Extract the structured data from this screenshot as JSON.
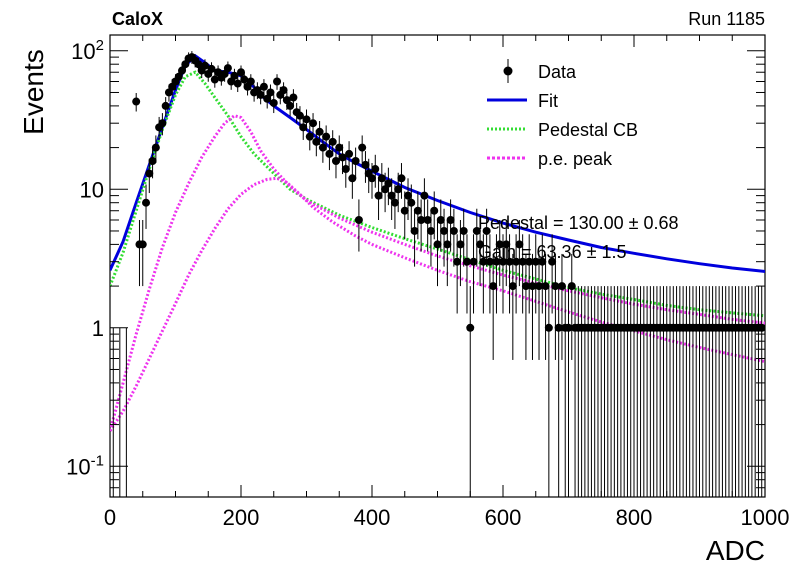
{
  "header": {
    "left_label": "CaloX",
    "right_label": "Run 1185"
  },
  "colors": {
    "data": "#000000",
    "fit": "#0000dd",
    "pedestal": "#33dd33",
    "pe_peak": "#ee33ee"
  },
  "chart_data": {
    "type": "scatter",
    "title": "",
    "xlabel": "ADC",
    "ylabel": "Events",
    "xlim": [
      0,
      1000
    ],
    "ylim": [
      0.06,
      130
    ],
    "yscale": "log",
    "x_ticks": [
      0,
      200,
      400,
      600,
      800,
      1000
    ],
    "x_tick_labels": [
      "0",
      "200",
      "400",
      "600",
      "800",
      "1000"
    ],
    "y_ticks": [
      0.1,
      1,
      10,
      100
    ],
    "y_tick_labels": [
      "10^-1",
      "1",
      "10",
      "10^2"
    ],
    "legend": {
      "placement": "top-right",
      "entries": [
        "Data",
        "Fit",
        "Pedestal CB",
        "p.e. peak"
      ]
    },
    "annotations": [
      "Pedestal = 130.00 ± 0.68",
      "Gain = 63.36 ± 1.5"
    ],
    "series": [
      {
        "name": "Data",
        "style": "points_with_error_bars",
        "points": [
          [
            5,
            0
          ],
          [
            15,
            0
          ],
          [
            25,
            0
          ],
          [
            40,
            43
          ],
          [
            45,
            4
          ],
          [
            50,
            4
          ],
          [
            55,
            8
          ],
          [
            60,
            13
          ],
          [
            65,
            16
          ],
          [
            70,
            20
          ],
          [
            75,
            28
          ],
          [
            80,
            30
          ],
          [
            85,
            40
          ],
          [
            90,
            50
          ],
          [
            95,
            55
          ],
          [
            100,
            60
          ],
          [
            105,
            65
          ],
          [
            110,
            72
          ],
          [
            115,
            80
          ],
          [
            120,
            88
          ],
          [
            125,
            90
          ],
          [
            130,
            85
          ],
          [
            135,
            80
          ],
          [
            140,
            72
          ],
          [
            145,
            78
          ],
          [
            150,
            68
          ],
          [
            155,
            74
          ],
          [
            160,
            62
          ],
          [
            165,
            70
          ],
          [
            170,
            64
          ],
          [
            175,
            68
          ],
          [
            180,
            75
          ],
          [
            185,
            60
          ],
          [
            190,
            66
          ],
          [
            195,
            58
          ],
          [
            200,
            70
          ],
          [
            205,
            62
          ],
          [
            210,
            55
          ],
          [
            215,
            60
          ],
          [
            220,
            50
          ],
          [
            225,
            52
          ],
          [
            230,
            48
          ],
          [
            235,
            55
          ],
          [
            240,
            45
          ],
          [
            245,
            50
          ],
          [
            250,
            42
          ],
          [
            255,
            60
          ],
          [
            260,
            48
          ],
          [
            265,
            52
          ],
          [
            270,
            44
          ],
          [
            275,
            40
          ],
          [
            280,
            46
          ],
          [
            285,
            36
          ],
          [
            290,
            34
          ],
          [
            295,
            28
          ],
          [
            300,
            32
          ],
          [
            305,
            24
          ],
          [
            310,
            30
          ],
          [
            315,
            22
          ],
          [
            320,
            26
          ],
          [
            325,
            20
          ],
          [
            330,
            24
          ],
          [
            335,
            18
          ],
          [
            340,
            22
          ],
          [
            345,
            16
          ],
          [
            350,
            20
          ],
          [
            355,
            17
          ],
          [
            360,
            14
          ],
          [
            365,
            18
          ],
          [
            370,
            12
          ],
          [
            375,
            16
          ],
          [
            380,
            6
          ],
          [
            385,
            20
          ],
          [
            390,
            15
          ],
          [
            395,
            13
          ],
          [
            400,
            12
          ],
          [
            405,
            14
          ],
          [
            410,
            9
          ],
          [
            415,
            12
          ],
          [
            420,
            10
          ],
          [
            425,
            11
          ],
          [
            430,
            9
          ],
          [
            435,
            8
          ],
          [
            440,
            10
          ],
          [
            445,
            12
          ],
          [
            450,
            7
          ],
          [
            455,
            9
          ],
          [
            460,
            8
          ],
          [
            465,
            5
          ],
          [
            470,
            7
          ],
          [
            475,
            6
          ],
          [
            480,
            9
          ],
          [
            485,
            6
          ],
          [
            490,
            5
          ],
          [
            495,
            7
          ],
          [
            500,
            4
          ],
          [
            505,
            6
          ],
          [
            510,
            5
          ],
          [
            515,
            4
          ],
          [
            520,
            6
          ],
          [
            525,
            5
          ],
          [
            530,
            3
          ],
          [
            535,
            4
          ],
          [
            540,
            5
          ],
          [
            545,
            3
          ],
          [
            550,
            1
          ],
          [
            555,
            3
          ],
          [
            560,
            5
          ],
          [
            565,
            4
          ],
          [
            570,
            3
          ],
          [
            575,
            5
          ],
          [
            580,
            3
          ],
          [
            585,
            2
          ],
          [
            590,
            3
          ],
          [
            595,
            4
          ],
          [
            600,
            3
          ],
          [
            605,
            4
          ],
          [
            610,
            3
          ],
          [
            615,
            2
          ],
          [
            620,
            3
          ],
          [
            625,
            4
          ],
          [
            630,
            3
          ],
          [
            635,
            2
          ],
          [
            640,
            3
          ],
          [
            645,
            2
          ],
          [
            650,
            3
          ],
          [
            655,
            2
          ],
          [
            660,
            3
          ],
          [
            665,
            2
          ],
          [
            670,
            1
          ],
          [
            675,
            3
          ],
          [
            680,
            2
          ],
          [
            685,
            1
          ],
          [
            690,
            2
          ],
          [
            695,
            1
          ],
          [
            700,
            1
          ],
          [
            705,
            2
          ],
          [
            710,
            1
          ],
          [
            715,
            1
          ],
          [
            720,
            1
          ],
          [
            725,
            1
          ],
          [
            730,
            1
          ],
          [
            735,
            1
          ],
          [
            740,
            1
          ],
          [
            745,
            1
          ],
          [
            750,
            1
          ],
          [
            755,
            1
          ],
          [
            760,
            1
          ],
          [
            765,
            1
          ],
          [
            770,
            1
          ],
          [
            775,
            1
          ],
          [
            780,
            1
          ],
          [
            785,
            1
          ],
          [
            790,
            1
          ],
          [
            795,
            1
          ],
          [
            800,
            1
          ],
          [
            805,
            1
          ],
          [
            810,
            1
          ],
          [
            815,
            1
          ],
          [
            820,
            1
          ],
          [
            825,
            1
          ],
          [
            830,
            1
          ],
          [
            835,
            1
          ],
          [
            840,
            1
          ],
          [
            845,
            1
          ],
          [
            850,
            1
          ],
          [
            855,
            1
          ],
          [
            860,
            1
          ],
          [
            865,
            1
          ],
          [
            870,
            1
          ],
          [
            875,
            1
          ],
          [
            880,
            1
          ],
          [
            885,
            1
          ],
          [
            890,
            1
          ],
          [
            895,
            1
          ],
          [
            900,
            1
          ],
          [
            905,
            1
          ],
          [
            910,
            1
          ],
          [
            915,
            1
          ],
          [
            920,
            1
          ],
          [
            925,
            1
          ],
          [
            930,
            1
          ],
          [
            935,
            1
          ],
          [
            940,
            1
          ],
          [
            945,
            1
          ],
          [
            950,
            1
          ],
          [
            955,
            1
          ],
          [
            960,
            1
          ],
          [
            965,
            1
          ],
          [
            970,
            1
          ],
          [
            975,
            1
          ],
          [
            980,
            1
          ],
          [
            985,
            1
          ],
          [
            990,
            1
          ],
          [
            995,
            1
          ]
        ]
      },
      {
        "name": "Fit",
        "style": "line",
        "points": [
          [
            0,
            2.6
          ],
          [
            20,
            4.2
          ],
          [
            40,
            8
          ],
          [
            60,
            15
          ],
          [
            80,
            28
          ],
          [
            100,
            52
          ],
          [
            115,
            78
          ],
          [
            130,
            92
          ],
          [
            145,
            82
          ],
          [
            160,
            72
          ],
          [
            180,
            70
          ],
          [
            200,
            66
          ],
          [
            215,
            58
          ],
          [
            230,
            48
          ],
          [
            250,
            40
          ],
          [
            275,
            33
          ],
          [
            300,
            27
          ],
          [
            325,
            22
          ],
          [
            350,
            18
          ],
          [
            375,
            15.5
          ],
          [
            400,
            13.5
          ],
          [
            450,
            10.3
          ],
          [
            500,
            8.3
          ],
          [
            550,
            6.8
          ],
          [
            600,
            5.7
          ],
          [
            650,
            4.9
          ],
          [
            700,
            4.3
          ],
          [
            750,
            3.8
          ],
          [
            800,
            3.45
          ],
          [
            850,
            3.15
          ],
          [
            900,
            2.9
          ],
          [
            950,
            2.7
          ],
          [
            1000,
            2.55
          ]
        ]
      },
      {
        "name": "Pedestal CB",
        "style": "dotted_line",
        "points": [
          [
            0,
            2
          ],
          [
            20,
            3.5
          ],
          [
            40,
            7
          ],
          [
            60,
            14
          ],
          [
            80,
            27
          ],
          [
            100,
            48
          ],
          [
            115,
            65
          ],
          [
            130,
            70
          ],
          [
            145,
            58
          ],
          [
            160,
            46
          ],
          [
            180,
            34
          ],
          [
            200,
            24
          ],
          [
            220,
            18
          ],
          [
            250,
            13
          ],
          [
            275,
            10
          ],
          [
            300,
            8.5
          ],
          [
            350,
            6.5
          ],
          [
            400,
            5.3
          ],
          [
            450,
            4.4
          ],
          [
            500,
            3.7
          ],
          [
            550,
            3.1
          ],
          [
            600,
            2.6
          ],
          [
            650,
            2.25
          ],
          [
            700,
            1.95
          ],
          [
            750,
            1.75
          ],
          [
            800,
            1.6
          ],
          [
            850,
            1.45
          ],
          [
            900,
            1.35
          ],
          [
            950,
            1.28
          ],
          [
            1000,
            1.22
          ]
        ]
      },
      {
        "name": "p.e. peak",
        "style": "dotted_line",
        "points": [
          [
            0,
            0.18
          ],
          [
            20,
            0.4
          ],
          [
            40,
            0.9
          ],
          [
            60,
            1.9
          ],
          [
            80,
            3.8
          ],
          [
            100,
            6.8
          ],
          [
            120,
            11
          ],
          [
            140,
            17
          ],
          [
            160,
            24
          ],
          [
            175,
            30
          ],
          [
            190,
            34
          ],
          [
            200,
            33
          ],
          [
            215,
            26
          ],
          [
            230,
            19
          ],
          [
            250,
            14
          ],
          [
            275,
            10.5
          ],
          [
            300,
            8.3
          ],
          [
            350,
            6.2
          ],
          [
            400,
            4.9
          ],
          [
            450,
            4
          ],
          [
            500,
            3.3
          ],
          [
            550,
            2.8
          ],
          [
            600,
            2.4
          ],
          [
            650,
            2.1
          ],
          [
            700,
            1.85
          ],
          [
            750,
            1.65
          ],
          [
            800,
            1.48
          ],
          [
            850,
            1.35
          ],
          [
            900,
            1.25
          ],
          [
            950,
            1.15
          ],
          [
            1000,
            1.08
          ]
        ]
      },
      {
        "name": "p.e. peak",
        "style": "dotted_line",
        "points": [
          [
            0,
            0.18
          ],
          [
            20,
            0.25
          ],
          [
            40,
            0.38
          ],
          [
            60,
            0.6
          ],
          [
            80,
            0.95
          ],
          [
            100,
            1.5
          ],
          [
            120,
            2.4
          ],
          [
            140,
            3.6
          ],
          [
            160,
            5.2
          ],
          [
            180,
            7.2
          ],
          [
            200,
            9.2
          ],
          [
            220,
            10.8
          ],
          [
            240,
            11.8
          ],
          [
            255,
            12
          ],
          [
            270,
            11.2
          ],
          [
            290,
            9.2
          ],
          [
            310,
            7.4
          ],
          [
            340,
            5.8
          ],
          [
            375,
            4.6
          ],
          [
            400,
            4
          ],
          [
            450,
            3.2
          ],
          [
            500,
            2.6
          ],
          [
            550,
            2.15
          ],
          [
            600,
            1.85
          ],
          [
            650,
            1.55
          ],
          [
            700,
            1.3
          ],
          [
            750,
            1.1
          ],
          [
            800,
            0.95
          ],
          [
            850,
            0.82
          ],
          [
            900,
            0.72
          ],
          [
            950,
            0.64
          ],
          [
            1000,
            0.57
          ]
        ]
      }
    ]
  }
}
